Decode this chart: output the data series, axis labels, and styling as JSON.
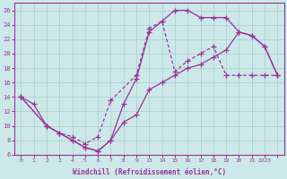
{
  "background_color": "#cce8e8",
  "grid_color": "#aacccc",
  "line_color": "#993399",
  "marker_color": "#993399",
  "xlabel": "Windchill (Refroidissement éolien,°C)",
  "xlabel_color": "#993399",
  "ylabel_color": "#993399",
  "ylim": [
    6,
    27
  ],
  "yticks": [
    6,
    8,
    10,
    12,
    14,
    16,
    18,
    20,
    22,
    24,
    26
  ],
  "tick_labels": [
    "0",
    "1",
    "2",
    "3",
    "4",
    "5",
    "6",
    "7",
    "8",
    "9",
    "",
    "",
    "",
    "13",
    "14",
    "15",
    "16",
    "17",
    "18",
    "19",
    "20",
    "21",
    "2223"
  ],
  "xtick_display": [
    "0",
    "1",
    "2",
    "3",
    "4",
    "5",
    "6",
    "7",
    "8",
    "9",
    "13",
    "14",
    "15",
    "16",
    "17",
    "18",
    "19",
    "20",
    "21",
    "2223"
  ],
  "curve1_x": [
    0,
    1,
    2,
    3,
    4,
    5,
    6,
    7,
    8,
    9,
    13,
    14,
    15,
    16,
    17,
    18,
    19,
    20,
    21,
    22,
    23
  ],
  "curve1_y": [
    14.0,
    13.0,
    10.0,
    9.0,
    8.0,
    7.0,
    6.5,
    8.0,
    13.0,
    16.5,
    23.0,
    24.5,
    26.0,
    26.0,
    25.0,
    25.0,
    25.0,
    23.0,
    22.5,
    21.0,
    17.0
  ],
  "curve2_x": [
    0,
    2,
    3,
    4,
    5,
    6,
    7,
    9,
    13,
    14,
    15,
    16,
    17,
    18,
    19,
    20,
    21,
    22,
    23
  ],
  "curve2_y": [
    14.0,
    10.0,
    9.0,
    8.5,
    7.5,
    8.5,
    13.5,
    17.0,
    23.5,
    24.5,
    17.5,
    19.0,
    20.0,
    21.0,
    17.0,
    17.0,
    17.0,
    17.0,
    17.0
  ],
  "curve3_x": [
    0,
    2,
    3,
    4,
    5,
    6,
    7,
    8,
    9,
    13,
    14,
    15,
    16,
    17,
    18,
    19,
    20,
    21,
    22,
    23
  ],
  "curve3_y": [
    14.0,
    10.0,
    9.0,
    8.0,
    7.0,
    6.5,
    8.0,
    10.5,
    11.5,
    15.0,
    16.0,
    17.0,
    18.0,
    18.5,
    19.5,
    20.5,
    23.0,
    22.5,
    21.0,
    17.0
  ]
}
